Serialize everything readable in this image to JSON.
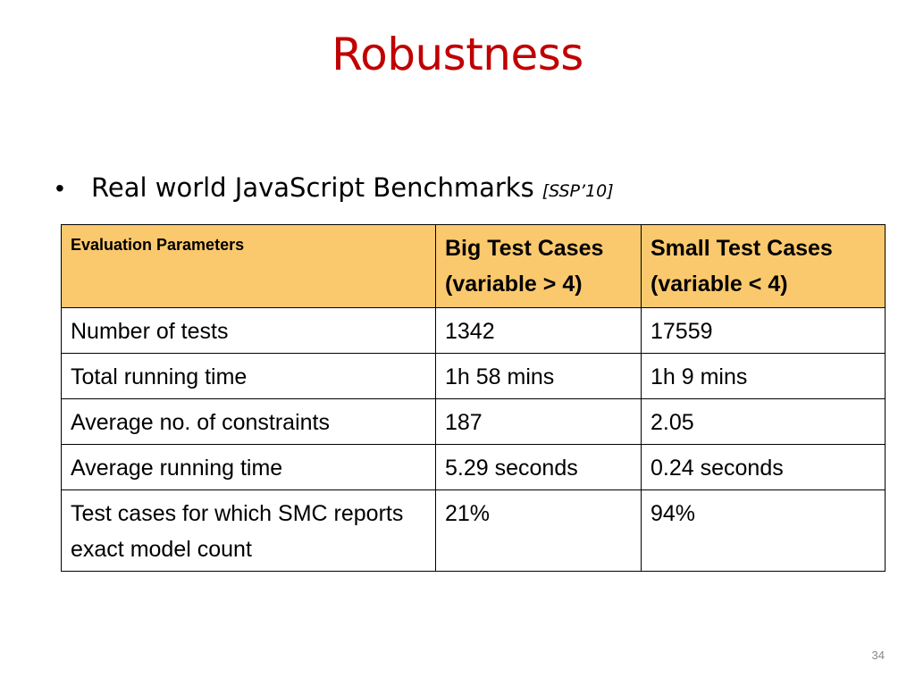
{
  "slide": {
    "title": "Robustness",
    "bullet": {
      "text": "Real world JavaScript Benchmarks",
      "citation": "[SSP’10]"
    },
    "table": {
      "headers": [
        "Evaluation Parameters",
        "Big Test Cases (variable > 4)",
        "Small Test Cases (variable < 4)"
      ],
      "rows": [
        [
          "Number of tests",
          "1342",
          "17559"
        ],
        [
          "Total running time",
          "1h 58 mins",
          "1h 9 mins"
        ],
        [
          "Average no. of constraints",
          "187",
          "2.05"
        ],
        [
          "Average running time",
          "5.29 seconds",
          "0.24 seconds"
        ],
        [
          "Test cases for which SMC reports exact model count",
          "21%",
          "94%"
        ]
      ],
      "header_fill": "#fbc96d"
    },
    "page_number": "34",
    "title_color": "#c00000"
  }
}
